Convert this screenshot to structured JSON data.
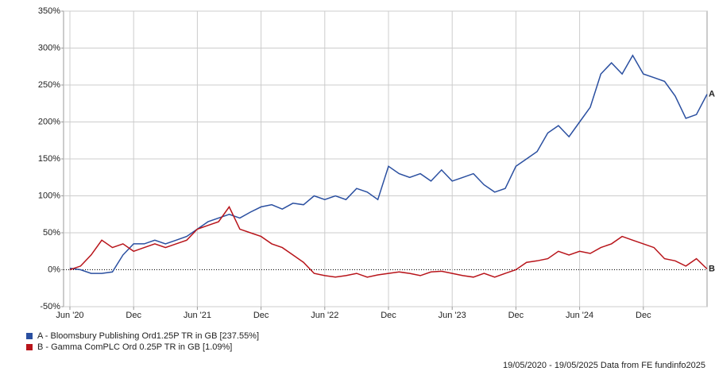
{
  "chart_data": {
    "type": "line",
    "categories": [
      "Jun '20",
      null,
      null,
      null,
      null,
      null,
      "Dec",
      null,
      null,
      null,
      null,
      null,
      "Jun '21",
      null,
      null,
      null,
      null,
      null,
      "Dec",
      null,
      null,
      null,
      null,
      null,
      "Jun '22",
      null,
      null,
      null,
      null,
      null,
      "Dec",
      null,
      null,
      null,
      null,
      null,
      "Jun '23",
      null,
      null,
      null,
      null,
      null,
      "Dec",
      null,
      null,
      null,
      null,
      null,
      "Jun '24",
      null,
      null,
      null,
      null,
      null,
      "Dec",
      null,
      null,
      null,
      null,
      null,
      null
    ],
    "series": [
      {
        "name": "A - Bloomsbury Publishing Ord1.25P TR in GB [237.55%]",
        "label": "A",
        "color": "#2a4fa0",
        "values": [
          2,
          0,
          -5,
          -5,
          -3,
          20,
          35,
          35,
          40,
          35,
          40,
          45,
          55,
          65,
          70,
          75,
          70,
          78,
          85,
          88,
          82,
          90,
          88,
          100,
          95,
          100,
          95,
          110,
          105,
          95,
          140,
          130,
          125,
          130,
          120,
          135,
          120,
          125,
          130,
          115,
          105,
          110,
          140,
          150,
          160,
          185,
          195,
          180,
          200,
          220,
          265,
          280,
          265,
          290,
          265,
          260,
          255,
          235,
          205,
          210,
          237.55
        ]
      },
      {
        "name": "B - Gamma ComPLC Ord 0.25P TR in GB [1.09%]",
        "label": "B",
        "color": "#b8141a",
        "values": [
          0,
          5,
          20,
          40,
          30,
          35,
          25,
          30,
          35,
          30,
          35,
          40,
          55,
          60,
          65,
          85,
          55,
          50,
          45,
          35,
          30,
          20,
          10,
          -5,
          -8,
          -10,
          -8,
          -5,
          -10,
          -7,
          -5,
          -3,
          -5,
          -8,
          -3,
          -2,
          -5,
          -8,
          -10,
          -5,
          -10,
          -5,
          0,
          10,
          12,
          15,
          25,
          20,
          25,
          22,
          30,
          35,
          45,
          40,
          35,
          30,
          15,
          12,
          5,
          15,
          1.09
        ]
      }
    ],
    "ylim": [
      -50,
      350
    ],
    "yticks": [
      {
        "value": -50,
        "label": "-50%"
      },
      {
        "value": 0,
        "label": "0%"
      },
      {
        "value": 50,
        "label": "50%"
      },
      {
        "value": 100,
        "label": "100%"
      },
      {
        "value": 150,
        "label": "150%"
      },
      {
        "value": 200,
        "label": "200%"
      },
      {
        "value": 250,
        "label": "250%"
      },
      {
        "value": 300,
        "label": "300%"
      },
      {
        "value": 350,
        "label": "350%"
      }
    ],
    "grid": true,
    "footer": "19/05/2020 - 19/05/2025 Data from FE fundinfo2025"
  }
}
